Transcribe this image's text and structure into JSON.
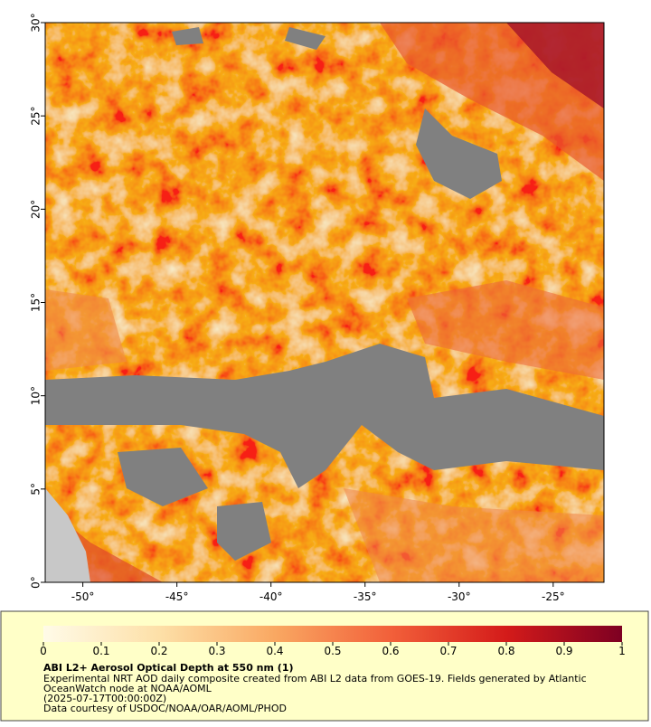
{
  "map": {
    "xlim": [
      -52,
      -22.3
    ],
    "ylim": [
      0,
      30
    ],
    "xticks": [
      {
        "value": -50,
        "label": "-50°"
      },
      {
        "value": -45,
        "label": "-45°"
      },
      {
        "value": -40,
        "label": "-40°"
      },
      {
        "value": -35,
        "label": "-35°"
      },
      {
        "value": -30,
        "label": "-30°"
      },
      {
        "value": -25,
        "label": "-25°"
      }
    ],
    "yticks": [
      {
        "value": 0,
        "label": "0°"
      },
      {
        "value": 5,
        "label": "5°"
      },
      {
        "value": 10,
        "label": "10°"
      },
      {
        "value": 15,
        "label": "15°"
      },
      {
        "value": 20,
        "label": "20°"
      },
      {
        "value": 25,
        "label": "25°"
      },
      {
        "value": 30,
        "label": "30°"
      }
    ]
  },
  "colorbar": {
    "lim": [
      0,
      1
    ],
    "ticks": [
      0,
      0.1,
      0.2,
      0.3,
      0.4,
      0.5,
      0.6,
      0.7,
      0.8,
      0.9,
      1
    ]
  },
  "caption": {
    "title": "ABI L2+ Aerosol Optical Depth at 550 nm (1)",
    "lines": [
      "Experimental NRT AOD daily composite created from ABI L2 data from GOES-19. Fields generated by Atlantic",
      "OceanWatch node at NOAA/AOML",
      "(2025-07-17T00:00:00Z)",
      "Data courtesy of USDOC/NOAA/OAR/AOML/PHOD"
    ]
  }
}
